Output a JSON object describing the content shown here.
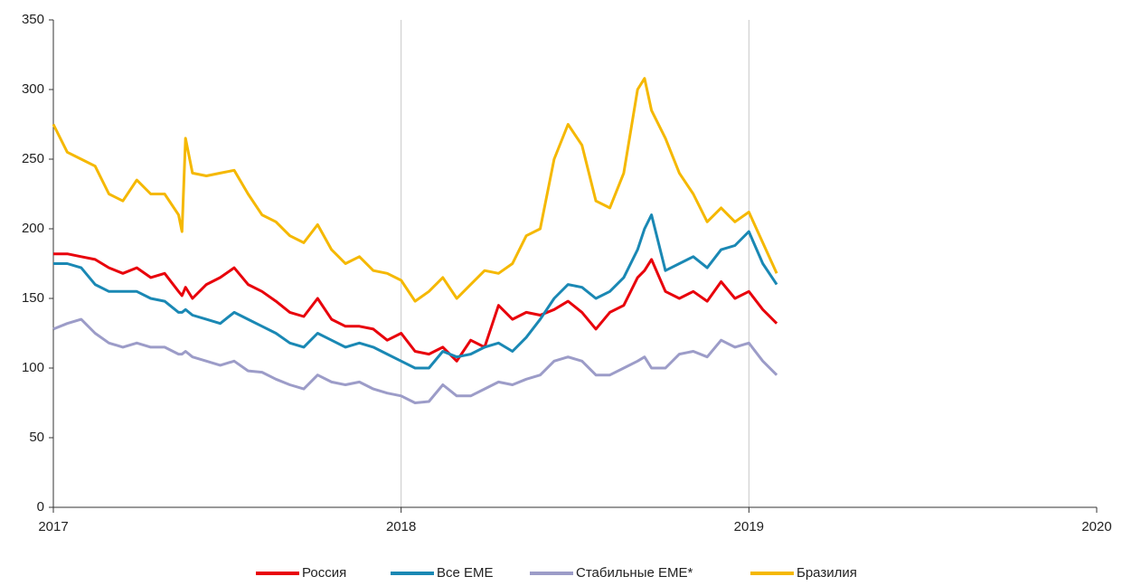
{
  "chart_data": {
    "type": "line",
    "x": [
      2017,
      2017.04,
      2017.08,
      2017.12,
      2017.16,
      2017.2,
      2017.24,
      2017.28,
      2017.32,
      2017.36,
      2017.37,
      2017.38,
      2017.4,
      2017.44,
      2017.48,
      2017.52,
      2017.56,
      2017.6,
      2017.64,
      2017.68,
      2017.72,
      2017.76,
      2017.8,
      2017.84,
      2017.88,
      2017.92,
      2017.96,
      2018,
      2018.04,
      2018.08,
      2018.12,
      2018.16,
      2018.2,
      2018.24,
      2018.28,
      2018.32,
      2018.36,
      2018.4,
      2018.44,
      2018.48,
      2018.52,
      2018.56,
      2018.6,
      2018.64,
      2018.68,
      2018.7,
      2018.72,
      2018.76,
      2018.8,
      2018.84,
      2018.88,
      2018.92,
      2018.96,
      2019,
      2019.04,
      2019.08
    ],
    "series": [
      {
        "name": "Россия",
        "color": "#e8000b",
        "values": [
          182,
          182,
          180,
          178,
          172,
          168,
          172,
          165,
          168,
          155,
          152,
          158,
          150,
          160,
          165,
          172,
          160,
          155,
          148,
          140,
          137,
          150,
          135,
          130,
          130,
          128,
          120,
          125,
          112,
          110,
          115,
          105,
          120,
          115,
          145,
          135,
          140,
          138,
          142,
          148,
          140,
          128,
          140,
          145,
          165,
          170,
          178,
          155,
          150,
          155,
          148,
          162,
          150,
          155,
          142,
          132
        ]
      },
      {
        "name": "Все EME",
        "color": "#1a88b4",
        "values": [
          175,
          175,
          172,
          160,
          155,
          155,
          155,
          150,
          148,
          140,
          140,
          142,
          138,
          135,
          132,
          140,
          135,
          130,
          125,
          118,
          115,
          125,
          120,
          115,
          118,
          115,
          110,
          105,
          100,
          100,
          112,
          108,
          110,
          115,
          118,
          112,
          122,
          135,
          150,
          160,
          158,
          150,
          155,
          165,
          185,
          200,
          210,
          170,
          175,
          180,
          172,
          185,
          188,
          198,
          175,
          160
        ]
      },
      {
        "name": "Стабильные EME*",
        "color": "#9c9cc8",
        "values": [
          128,
          132,
          135,
          125,
          118,
          115,
          118,
          115,
          115,
          110,
          110,
          112,
          108,
          105,
          102,
          105,
          98,
          97,
          92,
          88,
          85,
          95,
          90,
          88,
          90,
          85,
          82,
          80,
          75,
          76,
          88,
          80,
          80,
          85,
          90,
          88,
          92,
          95,
          105,
          108,
          105,
          95,
          95,
          100,
          105,
          108,
          100,
          100,
          110,
          112,
          108,
          120,
          115,
          118,
          105,
          95
        ]
      },
      {
        "name": "Бразилия",
        "color": "#f5b800",
        "values": [
          275,
          255,
          250,
          245,
          225,
          220,
          235,
          225,
          225,
          210,
          198,
          265,
          240,
          238,
          240,
          242,
          225,
          210,
          205,
          195,
          190,
          203,
          185,
          175,
          180,
          170,
          168,
          163,
          148,
          155,
          165,
          150,
          160,
          170,
          168,
          175,
          195,
          200,
          250,
          275,
          260,
          220,
          215,
          240,
          300,
          308,
          285,
          265,
          240,
          225,
          205,
          215,
          205,
          212,
          190,
          168
        ]
      }
    ],
    "xlim": [
      2017,
      2020
    ],
    "xticks": [
      2017,
      2018,
      2019,
      2020
    ],
    "ylim": [
      0,
      350
    ],
    "yticks": [
      0,
      50,
      100,
      150,
      200,
      250,
      300,
      350
    ],
    "grid": "x",
    "legend": "bottom"
  }
}
